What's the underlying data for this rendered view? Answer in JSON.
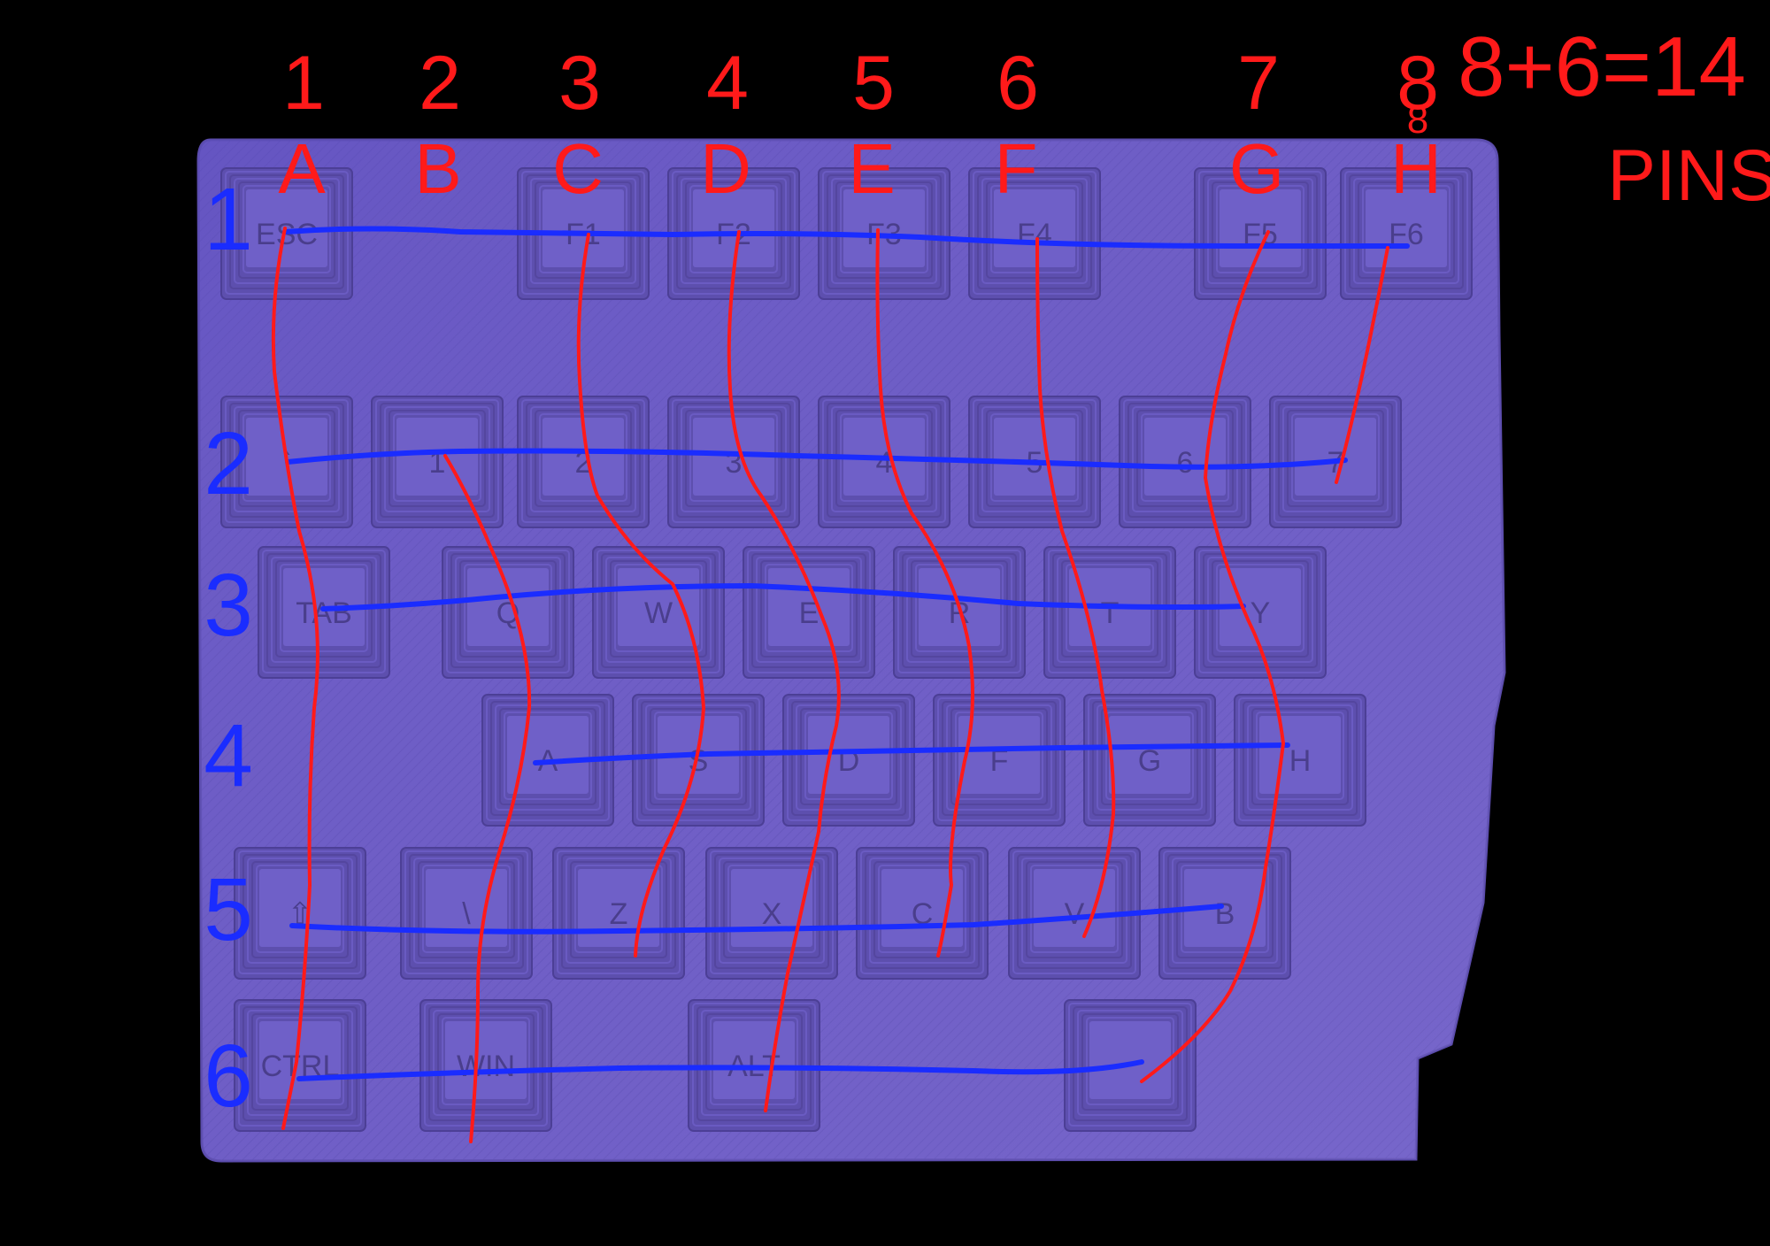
{
  "colors": {
    "background": "#000000",
    "board": "#6d5cc4",
    "board_edge": "#5a4bab",
    "key_outer": "#5d4fae",
    "key_inner": "#6f60c8",
    "key_legend": "#3d3378",
    "column_wire": "#ff1a1a",
    "row_wire": "#1a2cff"
  },
  "column_numbers": [
    "1",
    "2",
    "3",
    "4",
    "5",
    "6",
    "7",
    "8"
  ],
  "column_letters": [
    "A",
    "B",
    "C",
    "D",
    "E",
    "F",
    "G",
    "H"
  ],
  "row_numbers": [
    "1",
    "2",
    "3",
    "4",
    "5",
    "6"
  ],
  "pin_formula": "8+6=14",
  "pin_label": "PINS",
  "col8_extra": "8",
  "keys": [
    {
      "legend": "ESC"
    },
    {
      "legend": "F1"
    },
    {
      "legend": "F2"
    },
    {
      "legend": "F3"
    },
    {
      "legend": "F4"
    },
    {
      "legend": "F5"
    },
    {
      "legend": "F6"
    },
    {
      "legend": "`"
    },
    {
      "legend": "1"
    },
    {
      "legend": "2"
    },
    {
      "legend": "3"
    },
    {
      "legend": "4"
    },
    {
      "legend": "5"
    },
    {
      "legend": "6"
    },
    {
      "legend": "7"
    },
    {
      "legend": "TAB"
    },
    {
      "legend": "Q"
    },
    {
      "legend": "W"
    },
    {
      "legend": "E"
    },
    {
      "legend": "R"
    },
    {
      "legend": "T"
    },
    {
      "legend": "Y"
    },
    {
      "legend": "A"
    },
    {
      "legend": "S"
    },
    {
      "legend": "D"
    },
    {
      "legend": "F"
    },
    {
      "legend": "G"
    },
    {
      "legend": "H"
    },
    {
      "legend": "⇧"
    },
    {
      "legend": "\\"
    },
    {
      "legend": "Z"
    },
    {
      "legend": "X"
    },
    {
      "legend": "C"
    },
    {
      "legend": "V"
    },
    {
      "legend": "B"
    },
    {
      "legend": "CTRL"
    },
    {
      "legend": "WIN"
    },
    {
      "legend": "ALT"
    },
    {
      "legend": ""
    }
  ]
}
